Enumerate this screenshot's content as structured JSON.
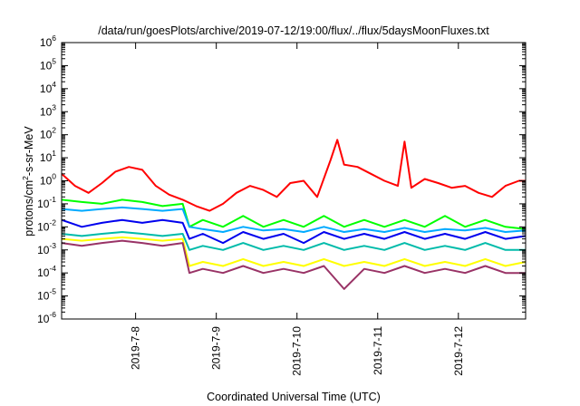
{
  "chart_data": {
    "type": "line",
    "title": "/data/run/goesPlots/archive/2019-07-12/19:00/flux/../flux/5daysMoonFluxes.txt",
    "xlabel": "Coordinated Universal Time (UTC)",
    "ylabel": "protons/cm²-s-sr-MeV",
    "ylabel_parts": [
      "protons/cm",
      "2",
      "-s-sr-MeV"
    ],
    "x_axis": {
      "type": "date",
      "range": [
        "2019-07-07T02:00",
        "2019-07-12T20:00"
      ],
      "ticks": [
        "2019-07-08",
        "2019-07-09",
        "2019-07-10",
        "2019-07-11",
        "2019-07-12"
      ],
      "tick_labels": [
        "2019-7-8",
        "2019-7-9",
        "2019-7-10",
        "2019-7-11",
        "2019-7-12"
      ]
    },
    "y_axis": {
      "scale": "log",
      "range": [
        1e-06,
        1000000.0
      ],
      "tick_exponents": [
        -6,
        -5,
        -4,
        -3,
        -2,
        -1,
        0,
        1,
        2,
        3,
        4,
        5,
        6
      ]
    },
    "grid": false,
    "legend": "none",
    "series": [
      {
        "color": "#ff0000",
        "x": [
          "2019-07-07T02:00",
          "2019-07-07T06:00",
          "2019-07-07T10:00",
          "2019-07-07T14:00",
          "2019-07-07T18:00",
          "2019-07-07T22:00",
          "2019-07-08T02:00",
          "2019-07-08T06:00",
          "2019-07-08T10:00",
          "2019-07-08T14:00",
          "2019-07-08T18:00",
          "2019-07-08T22:00",
          "2019-07-09T02:00",
          "2019-07-09T06:00",
          "2019-07-09T10:00",
          "2019-07-09T14:00",
          "2019-07-09T18:00",
          "2019-07-09T22:00",
          "2019-07-10T02:00",
          "2019-07-10T06:00",
          "2019-07-10T10:00",
          "2019-07-10T12:00",
          "2019-07-10T14:00",
          "2019-07-10T18:00",
          "2019-07-10T22:00",
          "2019-07-11T02:00",
          "2019-07-11T06:00",
          "2019-07-11T08:00",
          "2019-07-11T10:00",
          "2019-07-11T14:00",
          "2019-07-11T18:00",
          "2019-07-11T22:00",
          "2019-07-12T02:00",
          "2019-07-12T06:00",
          "2019-07-12T10:00",
          "2019-07-12T14:00",
          "2019-07-12T18:00",
          "2019-07-12T20:00"
        ],
        "values": [
          2,
          0.6,
          0.3,
          0.8,
          2.5,
          4,
          3,
          0.6,
          0.25,
          0.15,
          0.08,
          0.05,
          0.1,
          0.3,
          0.6,
          0.4,
          0.2,
          0.8,
          1,
          0.2,
          8,
          60,
          5,
          4,
          2,
          1,
          0.6,
          50,
          0.5,
          1.2,
          0.8,
          0.5,
          0.6,
          0.3,
          0.2,
          0.6,
          1,
          1
        ]
      },
      {
        "color": "#00ff00",
        "x": [
          "2019-07-07T02:00",
          "2019-07-07T08:00",
          "2019-07-07T14:00",
          "2019-07-07T20:00",
          "2019-07-08T02:00",
          "2019-07-08T08:00",
          "2019-07-08T14:00",
          "2019-07-08T16:00",
          "2019-07-08T20:00",
          "2019-07-09T02:00",
          "2019-07-09T08:00",
          "2019-07-09T14:00",
          "2019-07-09T20:00",
          "2019-07-10T02:00",
          "2019-07-10T08:00",
          "2019-07-10T14:00",
          "2019-07-10T20:00",
          "2019-07-11T02:00",
          "2019-07-11T08:00",
          "2019-07-11T14:00",
          "2019-07-11T20:00",
          "2019-07-12T02:00",
          "2019-07-12T08:00",
          "2019-07-12T14:00",
          "2019-07-12T20:00"
        ],
        "values": [
          0.15,
          0.12,
          0.1,
          0.15,
          0.12,
          0.08,
          0.1,
          0.01,
          0.02,
          0.01,
          0.03,
          0.01,
          0.02,
          0.01,
          0.03,
          0.01,
          0.02,
          0.01,
          0.02,
          0.01,
          0.03,
          0.01,
          0.02,
          0.01,
          0.008
        ]
      },
      {
        "color": "#00aaff",
        "x": [
          "2019-07-07T02:00",
          "2019-07-07T08:00",
          "2019-07-07T14:00",
          "2019-07-07T20:00",
          "2019-07-08T02:00",
          "2019-07-08T08:00",
          "2019-07-08T14:00",
          "2019-07-08T16:00",
          "2019-07-08T20:00",
          "2019-07-09T02:00",
          "2019-07-09T08:00",
          "2019-07-09T14:00",
          "2019-07-09T20:00",
          "2019-07-10T02:00",
          "2019-07-10T08:00",
          "2019-07-10T14:00",
          "2019-07-10T20:00",
          "2019-07-11T02:00",
          "2019-07-11T08:00",
          "2019-07-11T14:00",
          "2019-07-11T20:00",
          "2019-07-12T02:00",
          "2019-07-12T08:00",
          "2019-07-12T14:00",
          "2019-07-12T20:00"
        ],
        "values": [
          0.06,
          0.05,
          0.06,
          0.07,
          0.06,
          0.05,
          0.06,
          0.01,
          0.008,
          0.006,
          0.01,
          0.007,
          0.008,
          0.006,
          0.01,
          0.006,
          0.008,
          0.006,
          0.009,
          0.006,
          0.008,
          0.007,
          0.009,
          0.006,
          0.007
        ]
      },
      {
        "color": "#0000ee",
        "x": [
          "2019-07-07T02:00",
          "2019-07-07T08:00",
          "2019-07-07T14:00",
          "2019-07-07T20:00",
          "2019-07-08T02:00",
          "2019-07-08T08:00",
          "2019-07-08T14:00",
          "2019-07-08T16:00",
          "2019-07-08T20:00",
          "2019-07-09T02:00",
          "2019-07-09T08:00",
          "2019-07-09T14:00",
          "2019-07-09T20:00",
          "2019-07-10T02:00",
          "2019-07-10T08:00",
          "2019-07-10T14:00",
          "2019-07-10T20:00",
          "2019-07-11T02:00",
          "2019-07-11T08:00",
          "2019-07-11T14:00",
          "2019-07-11T20:00",
          "2019-07-12T02:00",
          "2019-07-12T08:00",
          "2019-07-12T14:00",
          "2019-07-12T20:00"
        ],
        "values": [
          0.02,
          0.01,
          0.015,
          0.02,
          0.015,
          0.02,
          0.015,
          0.003,
          0.005,
          0.002,
          0.006,
          0.003,
          0.005,
          0.002,
          0.006,
          0.003,
          0.005,
          0.003,
          0.006,
          0.003,
          0.005,
          0.003,
          0.006,
          0.003,
          0.004
        ]
      },
      {
        "color": "#00bbaa",
        "x": [
          "2019-07-07T02:00",
          "2019-07-07T08:00",
          "2019-07-07T14:00",
          "2019-07-07T20:00",
          "2019-07-08T02:00",
          "2019-07-08T08:00",
          "2019-07-08T14:00",
          "2019-07-08T16:00",
          "2019-07-08T20:00",
          "2019-07-09T02:00",
          "2019-07-09T08:00",
          "2019-07-09T14:00",
          "2019-07-09T20:00",
          "2019-07-10T02:00",
          "2019-07-10T08:00",
          "2019-07-10T14:00",
          "2019-07-10T20:00",
          "2019-07-11T02:00",
          "2019-07-11T08:00",
          "2019-07-11T14:00",
          "2019-07-11T20:00",
          "2019-07-12T02:00",
          "2019-07-12T08:00",
          "2019-07-12T14:00",
          "2019-07-12T20:00"
        ],
        "values": [
          0.005,
          0.004,
          0.005,
          0.006,
          0.005,
          0.004,
          0.005,
          0.001,
          0.0015,
          0.001,
          0.002,
          0.001,
          0.0015,
          0.001,
          0.002,
          0.001,
          0.0015,
          0.001,
          0.002,
          0.001,
          0.0015,
          0.001,
          0.002,
          0.001,
          0.001
        ]
      },
      {
        "color": "#ffff00",
        "x": [
          "2019-07-07T02:00",
          "2019-07-07T08:00",
          "2019-07-07T14:00",
          "2019-07-07T20:00",
          "2019-07-08T02:00",
          "2019-07-08T08:00",
          "2019-07-08T14:00",
          "2019-07-08T16:00",
          "2019-07-08T20:00",
          "2019-07-09T02:00",
          "2019-07-09T08:00",
          "2019-07-09T14:00",
          "2019-07-09T20:00",
          "2019-07-10T02:00",
          "2019-07-10T08:00",
          "2019-07-10T14:00",
          "2019-07-10T20:00",
          "2019-07-11T02:00",
          "2019-07-11T08:00",
          "2019-07-11T14:00",
          "2019-07-11T20:00",
          "2019-07-12T02:00",
          "2019-07-12T08:00",
          "2019-07-12T14:00",
          "2019-07-12T20:00"
        ],
        "values": [
          0.003,
          0.0025,
          0.003,
          0.0035,
          0.003,
          0.0025,
          0.003,
          0.0002,
          0.0003,
          0.0002,
          0.0004,
          0.0002,
          0.0003,
          0.0002,
          0.0004,
          0.0002,
          0.0003,
          0.0002,
          0.0004,
          0.0002,
          0.0003,
          0.0002,
          0.0004,
          0.0002,
          0.0003
        ]
      },
      {
        "color": "#993366",
        "x": [
          "2019-07-07T02:00",
          "2019-07-07T08:00",
          "2019-07-07T14:00",
          "2019-07-07T20:00",
          "2019-07-08T02:00",
          "2019-07-08T08:00",
          "2019-07-08T14:00",
          "2019-07-08T16:00",
          "2019-07-08T20:00",
          "2019-07-09T02:00",
          "2019-07-09T08:00",
          "2019-07-09T14:00",
          "2019-07-09T20:00",
          "2019-07-10T02:00",
          "2019-07-10T08:00",
          "2019-07-10T14:00",
          "2019-07-10T20:00",
          "2019-07-11T02:00",
          "2019-07-11T08:00",
          "2019-07-11T14:00",
          "2019-07-11T20:00",
          "2019-07-12T02:00",
          "2019-07-12T08:00",
          "2019-07-12T14:00",
          "2019-07-12T20:00"
        ],
        "values": [
          0.002,
          0.0015,
          0.002,
          0.0025,
          0.002,
          0.0015,
          0.002,
          0.0001,
          0.00015,
          0.0001,
          0.0002,
          0.0001,
          0.00015,
          0.0001,
          0.0002,
          2e-05,
          0.00015,
          0.0001,
          0.0002,
          0.0001,
          0.00015,
          0.0001,
          0.0002,
          0.0001,
          0.0001
        ]
      }
    ]
  }
}
